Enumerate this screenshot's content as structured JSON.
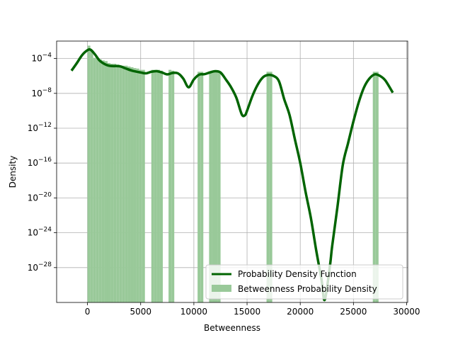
{
  "chart_data": {
    "type": "bar",
    "title": "",
    "xlabel": "Betweenness",
    "ylabel": "Density",
    "y_scale": "log",
    "xlim": [
      -2900,
      30100
    ],
    "ylim": [
      1e-32,
      0.01
    ],
    "grid": true,
    "legend_position": "lower right",
    "x_ticks": [
      {
        "value": 0,
        "label": "0"
      },
      {
        "value": 5000,
        "label": "5000"
      },
      {
        "value": 10000,
        "label": "10000"
      },
      {
        "value": 15000,
        "label": "15000"
      },
      {
        "value": 20000,
        "label": "20000"
      },
      {
        "value": 25000,
        "label": "25000"
      },
      {
        "value": 30000,
        "label": "30000"
      }
    ],
    "y_ticks": [
      {
        "value": 0.0001,
        "base": "10",
        "exp": "−4"
      },
      {
        "value": 1e-08,
        "base": "10",
        "exp": "−8"
      },
      {
        "value": 1e-12,
        "base": "10",
        "exp": "−12"
      },
      {
        "value": 1e-16,
        "base": "10",
        "exp": "−16"
      },
      {
        "value": 1e-20,
        "base": "10",
        "exp": "−20"
      },
      {
        "value": 1e-24,
        "base": "10",
        "exp": "−24"
      },
      {
        "value": 1e-28,
        "base": "10",
        "exp": "−28"
      }
    ],
    "histogram": {
      "name": "Betweenness Probability Density",
      "color": "#99c999",
      "bin_width": 270,
      "bins": [
        {
          "x0": 0,
          "density": 0.003
        },
        {
          "x0": 270,
          "density": 0.0009
        },
        {
          "x0": 540,
          "density": 0.00012
        },
        {
          "x0": 810,
          "density": 9e-05
        },
        {
          "x0": 1080,
          "density": 8e-05
        },
        {
          "x0": 1350,
          "density": 6e-05
        },
        {
          "x0": 1620,
          "density": 5e-05
        },
        {
          "x0": 1890,
          "density": 3e-05
        },
        {
          "x0": 2160,
          "density": 2.5e-05
        },
        {
          "x0": 2430,
          "density": 2.5e-05
        },
        {
          "x0": 2700,
          "density": 2e-05
        },
        {
          "x0": 2970,
          "density": 1.5e-05
        },
        {
          "x0": 3240,
          "density": 1.5e-05
        },
        {
          "x0": 3510,
          "density": 1.5e-05
        },
        {
          "x0": 3780,
          "density": 1.2e-05
        },
        {
          "x0": 4050,
          "density": 1e-05
        },
        {
          "x0": 4320,
          "density": 8e-06
        },
        {
          "x0": 4590,
          "density": 7e-06
        },
        {
          "x0": 4860,
          "density": 5e-06
        },
        {
          "x0": 5130,
          "density": 5e-06
        },
        {
          "x0": 6000,
          "density": 5e-06
        },
        {
          "x0": 6270,
          "density": 5e-06
        },
        {
          "x0": 6540,
          "density": 5e-06
        },
        {
          "x0": 6810,
          "density": 4e-06
        },
        {
          "x0": 7620,
          "density": 5e-06
        },
        {
          "x0": 7890,
          "density": 4e-06
        },
        {
          "x0": 10350,
          "density": 3e-06
        },
        {
          "x0": 10620,
          "density": 3e-06
        },
        {
          "x0": 11430,
          "density": 3.5e-06
        },
        {
          "x0": 11700,
          "density": 3.5e-06
        },
        {
          "x0": 11970,
          "density": 3.5e-06
        },
        {
          "x0": 12240,
          "density": 3.5e-06
        },
        {
          "x0": 16830,
          "density": 3e-06
        },
        {
          "x0": 17100,
          "density": 3e-06
        },
        {
          "x0": 26820,
          "density": 3e-06
        },
        {
          "x0": 27090,
          "density": 3e-06
        }
      ]
    },
    "pdf": {
      "name": "Probability Density Function",
      "color": "#006400",
      "points": [
        [
          -1500,
          4e-06
        ],
        [
          -1000,
          3e-05
        ],
        [
          -500,
          0.00025
        ],
        [
          0,
          0.0009
        ],
        [
          300,
          0.001
        ],
        [
          700,
          0.0003
        ],
        [
          1200,
          5e-05
        ],
        [
          2000,
          1.5e-05
        ],
        [
          3000,
          1.3e-05
        ],
        [
          3500,
          8e-06
        ],
        [
          4200,
          4e-06
        ],
        [
          5000,
          2.5e-06
        ],
        [
          5500,
          2e-06
        ],
        [
          6000,
          3e-06
        ],
        [
          6500,
          3.5e-06
        ],
        [
          7000,
          2.5e-06
        ],
        [
          7500,
          1.5e-06
        ],
        [
          8000,
          2.2e-06
        ],
        [
          8500,
          2e-06
        ],
        [
          9000,
          5e-07
        ],
        [
          9500,
          5e-08
        ],
        [
          10000,
          4e-07
        ],
        [
          10500,
          1.4e-06
        ],
        [
          11000,
          1.6e-06
        ],
        [
          11500,
          2.5e-06
        ],
        [
          12000,
          3.5e-06
        ],
        [
          12500,
          2.5e-06
        ],
        [
          13000,
          4e-07
        ],
        [
          13500,
          5e-08
        ],
        [
          14000,
          3e-09
        ],
        [
          14500,
          4e-11
        ],
        [
          14800,
          3e-11
        ],
        [
          15000,
          1e-10
        ],
        [
          15500,
          5e-09
        ],
        [
          16000,
          1e-07
        ],
        [
          16500,
          7e-07
        ],
        [
          17000,
          1.3e-06
        ],
        [
          17500,
          1e-06
        ],
        [
          18000,
          2.5e-07
        ],
        [
          18500,
          2e-09
        ],
        [
          19000,
          3e-11
        ],
        [
          19500,
          5e-14
        ],
        [
          20000,
          1e-16
        ],
        [
          20500,
          5e-20
        ],
        [
          21000,
          5e-23
        ],
        [
          21500,
          1e-26
        ],
        [
          22000,
          4e-30
        ],
        [
          22300,
          2e-32
        ],
        [
          22800,
          2e-28
        ],
        [
          23000,
          3e-26
        ],
        [
          23500,
          1e-21
        ],
        [
          24000,
          6e-17
        ],
        [
          24500,
          2e-14
        ],
        [
          25000,
          6e-12
        ],
        [
          25500,
          1e-09
        ],
        [
          26000,
          5e-08
        ],
        [
          26500,
          5e-07
        ],
        [
          27000,
          1.5e-06
        ],
        [
          27500,
          1e-06
        ],
        [
          28000,
          3e-07
        ],
        [
          28700,
          1.2e-08
        ]
      ]
    }
  }
}
